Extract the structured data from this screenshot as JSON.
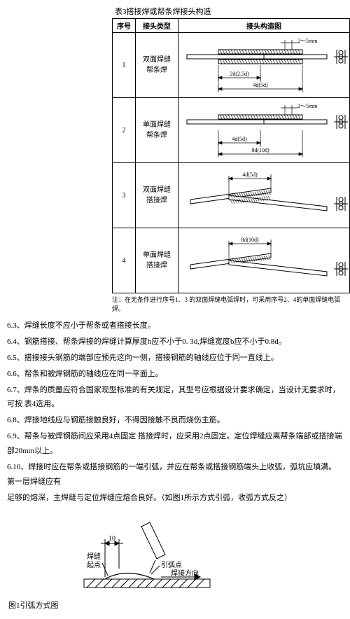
{
  "table": {
    "title": "表3搭接焊或帮条焊接头构造",
    "headers": {
      "idx": "序号",
      "type": "接头类型",
      "fig": "接头构造图"
    },
    "rows": [
      {
        "idx": "1",
        "type1": "双面焊缝",
        "type2": "帮条焊",
        "diag": {
          "kind": "bar-double",
          "topdim": "2～5mm",
          "dim1": "2d(2.5d)",
          "dim2": "4d(5d)"
        }
      },
      {
        "idx": "2",
        "type1": "单面焊缝",
        "type2": "帮条焊",
        "diag": {
          "kind": "bar-single",
          "topdim": "2～5mm",
          "dim1": "4d(5d)",
          "dim2": "8d(10d)"
        }
      },
      {
        "idx": "3",
        "type1": "双面焊缝",
        "type2": "搭接焊",
        "diag": {
          "kind": "lap-double",
          "dim1": "4d(5d)"
        }
      },
      {
        "idx": "4",
        "type1": "单面焊缝",
        "type2": "搭接焊",
        "diag": {
          "kind": "lap-single",
          "dim1": "8d(10d)"
        }
      }
    ],
    "note": "注：在无条件进行序号1、3 的双面焊缝电弧焊时，可采用序号2、4的单面焊缝电弧焊。"
  },
  "paragraphs": [
    "6.3、焊缝长度不应小于帮条或者搭接长度。",
    "6.4、钢筋搭接、帮条焊接的焊缝计算厚度h应不小于0. 3d,焊缝宽度b应不小于0.8d。",
    "6.5、搭接接头钢筋的端部应预先这向一侧，搭接钢筋的轴线应位于同一直线上。",
    "6.6、帮条和被焊钢筋的轴线应在同一平面上。",
    "6.7、焊条的质量应符合国家现型标准的有关规定，其型号应根据设计要求确定，当设计无要求时，可按 表4选用。",
    "6.8、焊接地线应与钢筋接触良好，不得因接触不良而烧伤主筋。",
    "6.9、帮条与被焊钢筋间应采用4点固定 搭接焊时，应采用2点固定。定位焊缝应离帮条端部或搭接端 部20mm以上。",
    "6.10、焊接时应在帮条或搭接钢筋的一端引弧，并应在帮条或搭接钢筋端头上收弧，弧坑应填满。第一层焊缝应有",
    "足够的熔深，主焊缝与定位焊缝应熔合良好。（如图1所示方式引弧，收弧方式反之）"
  ],
  "fig1": {
    "dim10": "10",
    "label_start1": "焊缝",
    "label_start2": "起点",
    "label_arc": "引弧点",
    "label_dir": "焊接方向",
    "caption": "图1引弧方式图"
  },
  "style": {
    "stroke": "#000000",
    "hatch": "#000000",
    "bg": "#ffffff",
    "font_small": 8
  }
}
